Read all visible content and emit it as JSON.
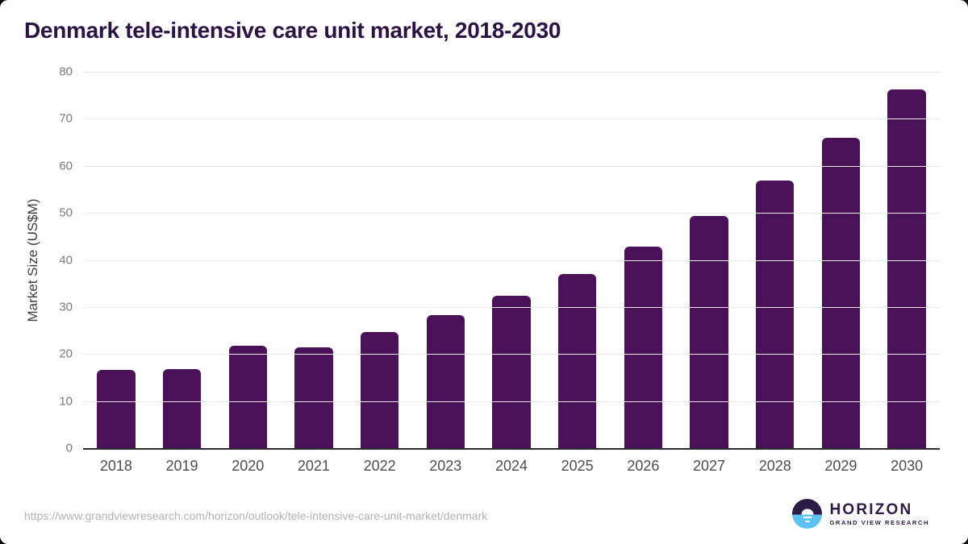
{
  "title": "Denmark tele-intensive care unit market, 2018-2030",
  "chart_data": {
    "type": "bar",
    "title": "Denmark tele-intensive care unit market, 2018-2030",
    "categories": [
      "2018",
      "2019",
      "2020",
      "2021",
      "2022",
      "2023",
      "2024",
      "2025",
      "2026",
      "2027",
      "2028",
      "2029",
      "2030"
    ],
    "values": [
      16.6,
      16.8,
      21.7,
      21.5,
      24.7,
      28.3,
      32.3,
      37.0,
      42.8,
      49.4,
      56.9,
      66.0,
      76.3
    ],
    "xlabel": "",
    "ylabel": "Market Size (US$M)",
    "ylim": [
      0,
      80
    ],
    "ytick_step": 10,
    "yticks": [
      0,
      10,
      20,
      30,
      40,
      50,
      60,
      70,
      80
    ],
    "grid": "horizontal-only",
    "legend_position": "none",
    "bar_color": "#4a1158"
  },
  "colors": {
    "title_text": "#2d1245",
    "bar_fill": "#4a1158",
    "gridline": "#e9e9e9",
    "axis_line": "#2b2b2b",
    "y_tick_text": "#7a7a7a",
    "x_tick_text": "#4d4d4d",
    "url_text": "#b1b1b1",
    "logo_purple": "#2e1a47",
    "logo_blue": "#5cc2ef",
    "background": "#ffffff"
  },
  "footer": {
    "source_url": "https://www.grandviewresearch.com/horizon/outlook/tele-intensive-care-unit-market/denmark",
    "logo": {
      "brand": "HORIZON",
      "sub_brand": "GRAND VIEW RESEARCH"
    }
  }
}
